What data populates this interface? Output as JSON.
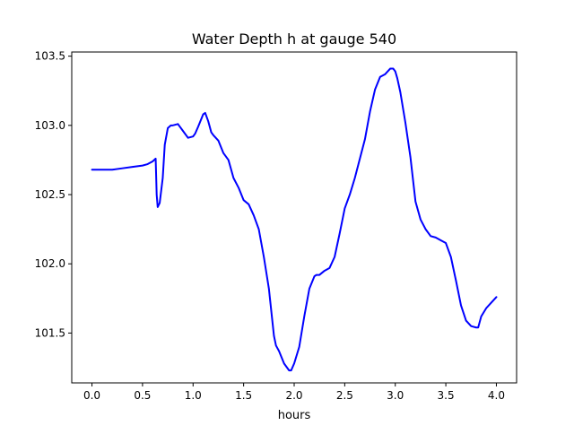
{
  "chart_data": {
    "type": "line",
    "title": "Water Depth h at gauge 540",
    "xlabel": "hours",
    "ylabel": "",
    "xlim": [
      -0.2,
      4.2
    ],
    "ylim": [
      101.14,
      103.53
    ],
    "grid": false,
    "x_ticks": [
      0.0,
      0.5,
      1.0,
      1.5,
      2.0,
      2.5,
      3.0,
      3.5,
      4.0
    ],
    "x_tick_labels": [
      "0.0",
      "0.5",
      "1.0",
      "1.5",
      "2.0",
      "2.5",
      "3.0",
      "3.5",
      "4.0"
    ],
    "y_ticks": [
      101.5,
      102.0,
      102.5,
      103.0,
      103.5
    ],
    "y_tick_labels": [
      "101.5",
      "102.0",
      "102.5",
      "103.0",
      "103.5"
    ],
    "series": [
      {
        "color": "#0000ff",
        "x": [
          0.0,
          0.1,
          0.2,
          0.3,
          0.4,
          0.5,
          0.55,
          0.6,
          0.63,
          0.64,
          0.65,
          0.67,
          0.7,
          0.72,
          0.75,
          0.78,
          0.8,
          0.85,
          0.9,
          0.95,
          1.0,
          1.02,
          1.05,
          1.1,
          1.12,
          1.15,
          1.18,
          1.2,
          1.25,
          1.3,
          1.35,
          1.4,
          1.45,
          1.5,
          1.55,
          1.6,
          1.65,
          1.7,
          1.75,
          1.8,
          1.82,
          1.85,
          1.9,
          1.95,
          1.97,
          2.0,
          2.05,
          2.1,
          2.15,
          2.2,
          2.22,
          2.25,
          2.3,
          2.35,
          2.4,
          2.45,
          2.5,
          2.55,
          2.6,
          2.65,
          2.7,
          2.75,
          2.8,
          2.85,
          2.9,
          2.95,
          2.98,
          3.0,
          3.02,
          3.05,
          3.1,
          3.15,
          3.2,
          3.25,
          3.3,
          3.35,
          3.4,
          3.45,
          3.5,
          3.55,
          3.6,
          3.65,
          3.7,
          3.75,
          3.8,
          3.82,
          3.85,
          3.9,
          3.95,
          4.0
        ],
        "y": [
          102.68,
          102.68,
          102.68,
          102.69,
          102.7,
          102.71,
          102.72,
          102.74,
          102.76,
          102.5,
          102.41,
          102.44,
          102.62,
          102.86,
          102.98,
          103.0,
          103.0,
          103.01,
          102.96,
          102.91,
          102.92,
          102.94,
          102.99,
          103.08,
          103.09,
          103.03,
          102.95,
          102.93,
          102.89,
          102.8,
          102.75,
          102.62,
          102.55,
          102.46,
          102.43,
          102.35,
          102.25,
          102.05,
          101.82,
          101.48,
          101.41,
          101.37,
          101.28,
          101.23,
          101.23,
          101.28,
          101.4,
          101.62,
          101.82,
          101.91,
          101.92,
          101.92,
          101.95,
          101.97,
          102.05,
          102.22,
          102.4,
          102.5,
          102.62,
          102.76,
          102.9,
          103.1,
          103.26,
          103.35,
          103.37,
          103.41,
          103.41,
          103.39,
          103.34,
          103.24,
          103.02,
          102.77,
          102.45,
          102.32,
          102.25,
          102.2,
          102.19,
          102.17,
          102.15,
          102.05,
          101.88,
          101.7,
          101.59,
          101.55,
          101.54,
          101.54,
          101.62,
          101.68,
          101.72,
          101.76
        ]
      }
    ]
  }
}
